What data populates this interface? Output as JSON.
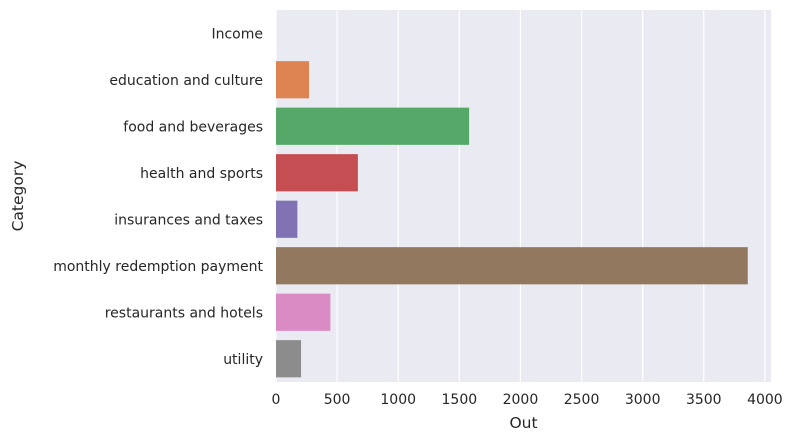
{
  "chart_data": {
    "type": "bar",
    "orientation": "horizontal",
    "xlabel": "Out",
    "ylabel": "Category",
    "categories": [
      "Income",
      "education and culture",
      "food and beverages",
      "health and sports",
      "insurances and taxes",
      "monthly redemption payment",
      "restaurants and hotels",
      "utility"
    ],
    "values": [
      0,
      270,
      1580,
      670,
      175,
      3860,
      445,
      205
    ],
    "xlim": [
      0,
      4050
    ],
    "xticks": [
      0,
      500,
      1000,
      1500,
      2000,
      2500,
      3000,
      3500,
      4000
    ],
    "grid": true,
    "background": "#eaeaf2",
    "colors": [
      "#4c72b0",
      "#dd8452",
      "#55a868",
      "#c44e52",
      "#8172b3",
      "#937860",
      "#da8bc3",
      "#8c8c8c"
    ]
  }
}
